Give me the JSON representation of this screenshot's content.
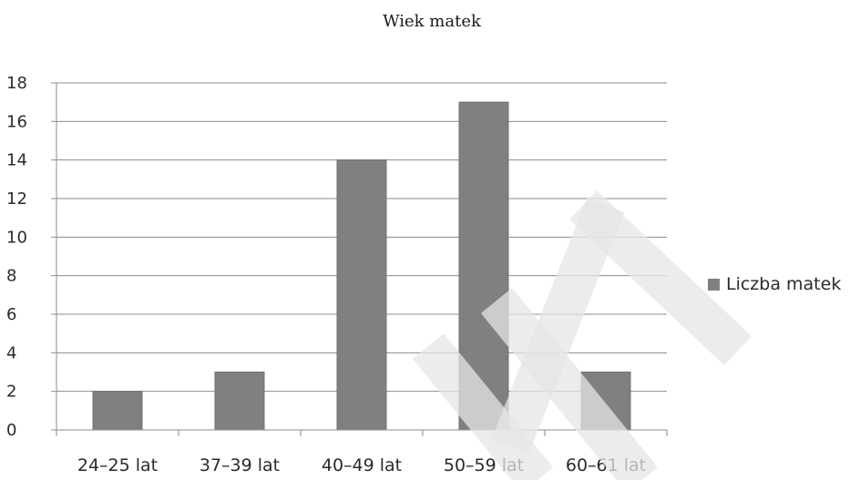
{
  "chart_data": {
    "type": "bar",
    "title": "Wiek matek",
    "categories": [
      "24–25 lat",
      "37–39 lat",
      "40–49 lat",
      "50–59 lat",
      "60–61 lat"
    ],
    "series": [
      {
        "name": "Liczba matek",
        "values": [
          2,
          3,
          14,
          17,
          3
        ],
        "color": "#808080"
      }
    ],
    "ylim": [
      0,
      18
    ],
    "yticks": [
      0,
      2,
      4,
      6,
      8,
      10,
      12,
      14,
      16,
      18
    ],
    "grid": true,
    "legend_position": "right",
    "xlabel": "",
    "ylabel": ""
  }
}
